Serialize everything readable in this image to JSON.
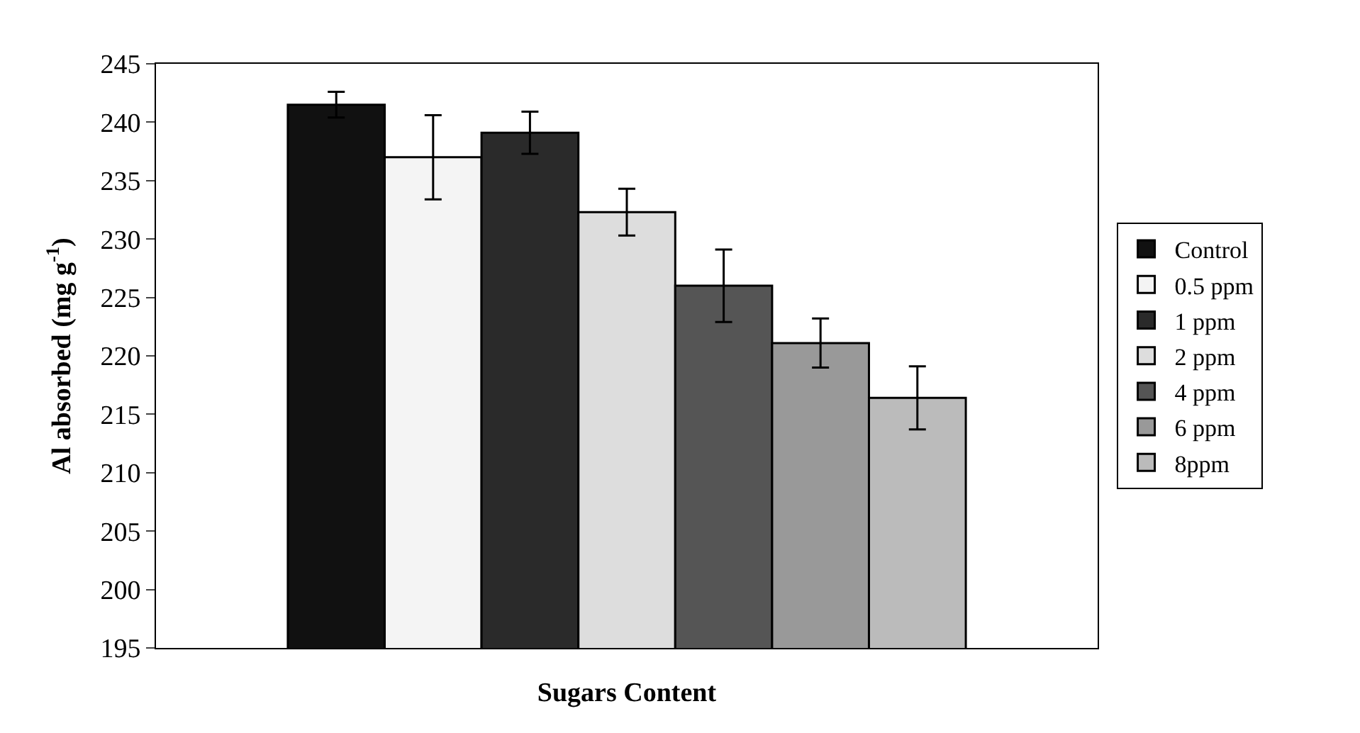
{
  "chart_data": {
    "type": "bar",
    "xlabel": "Sugars Content",
    "ylabel": "Al absorbed (mg g$^{-1}$)",
    "categories": [
      null
    ],
    "series": [
      {
        "name": "Control",
        "color": "#111111",
        "values": [
          241.5
        ],
        "errors": [
          1.1
        ]
      },
      {
        "name": "0.5 ppm",
        "color": "#f4f4f4",
        "values": [
          237.0
        ],
        "errors": [
          3.6
        ]
      },
      {
        "name": "1 ppm",
        "color": "#2a2a2a",
        "values": [
          239.1
        ],
        "errors": [
          1.8
        ]
      },
      {
        "name": "2 ppm",
        "color": "#dddddd",
        "values": [
          232.3
        ],
        "errors": [
          2.0
        ]
      },
      {
        "name": "4 ppm",
        "color": "#555555",
        "values": [
          226.0
        ],
        "errors": [
          3.1
        ]
      },
      {
        "name": "6 ppm",
        "color": "#999999",
        "values": [
          221.1
        ],
        "errors": [
          2.1
        ]
      },
      {
        "name": "8ppm",
        "color": "#bbbbbb",
        "values": [
          216.4
        ],
        "errors": [
          2.7
        ]
      }
    ],
    "ylim": [
      195,
      245
    ],
    "yticks": [
      195,
      200,
      205,
      210,
      215,
      220,
      225,
      230,
      235,
      240,
      245
    ],
    "legend": "right"
  }
}
